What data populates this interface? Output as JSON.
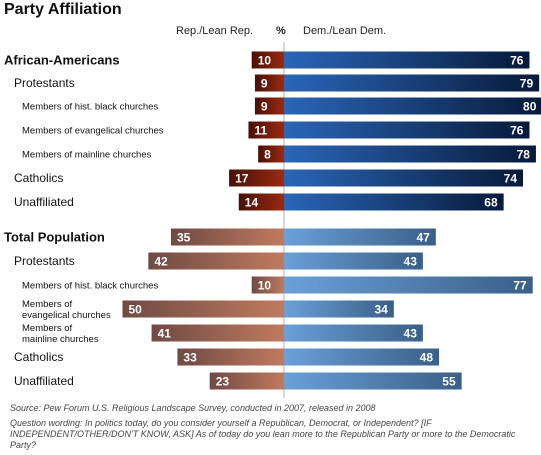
{
  "title": "Party Affiliation",
  "headers": {
    "rep": "Rep./Lean Rep.",
    "pct": "%",
    "dem": "Dem./Lean Dem."
  },
  "colors": {
    "rep_black": "#7a1c0c",
    "dem_black": "#0d2a55",
    "rep_total": "#a96048",
    "dem_total": "#4f80b4"
  },
  "chart_data": {
    "type": "bar",
    "orientation": "horizontal-diverging",
    "series": [
      {
        "name": "Rep./Lean Rep.",
        "side": "left"
      },
      {
        "name": "Dem./Lean Dem.",
        "side": "right"
      }
    ],
    "groups": [
      {
        "name": "African-Americans",
        "rows": [
          {
            "label": "African-Americans",
            "level": 0,
            "rep": 10,
            "dem": 76
          },
          {
            "label": "Protestants",
            "level": 1,
            "rep": 9,
            "dem": 79
          },
          {
            "label": "Members of hist. black churches",
            "level": 2,
            "rep": 9,
            "dem": 80
          },
          {
            "label": "Members of evangelical churches",
            "level": 2,
            "rep": 11,
            "dem": 76
          },
          {
            "label": "Members of mainline churches",
            "level": 2,
            "rep": 8,
            "dem": 78
          },
          {
            "label": "Catholics",
            "level": 1,
            "rep": 17,
            "dem": 74
          },
          {
            "label": "Unaffiliated",
            "level": 1,
            "rep": 14,
            "dem": 68
          }
        ]
      },
      {
        "name": "Total Population",
        "rows": [
          {
            "label": "Total Population",
            "level": 0,
            "rep": 35,
            "dem": 47
          },
          {
            "label": "Protestants",
            "level": 1,
            "rep": 42,
            "dem": 43
          },
          {
            "label": "Members of hist. black churches",
            "level": 2,
            "rep": 10,
            "dem": 77
          },
          {
            "label": "Members of evangelical churches",
            "label_lines": [
              "Members of",
              "evangelical churches"
            ],
            "level": 2,
            "rep": 50,
            "dem": 34
          },
          {
            "label": "Members of mainline churches",
            "label_lines": [
              "Members of",
              "mainline churches"
            ],
            "level": 2,
            "rep": 41,
            "dem": 43
          },
          {
            "label": "Catholics",
            "level": 1,
            "rep": 33,
            "dem": 48
          },
          {
            "label": "Unaffiliated",
            "level": 1,
            "rep": 23,
            "dem": 55
          }
        ]
      }
    ],
    "xlim": [
      0,
      100
    ]
  },
  "footer": {
    "source": "Source: Pew Forum U.S. Religious Landscape Survey, conducted in 2007, released in 2008",
    "note": "Question wording: In politics today, do you consider yourself a Republican, Democrat, or Independent? [IF INDEPENDENT/OTHER/DON'T KNOW, ASK] As of today do you lean more to the Republican Party or more to the Democratic Party?"
  }
}
